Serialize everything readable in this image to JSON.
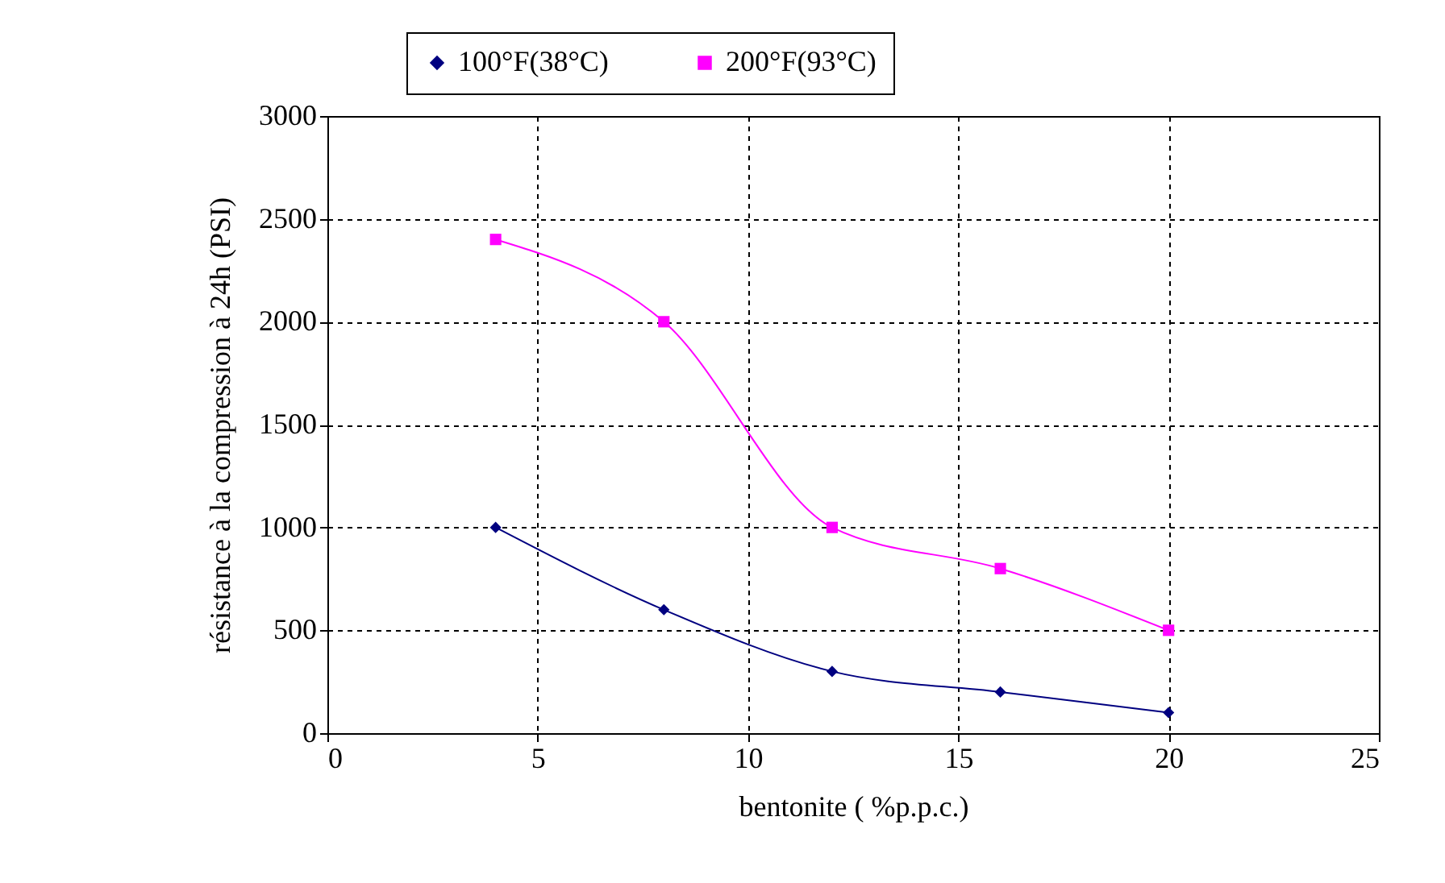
{
  "chart_data": {
    "type": "line",
    "xlabel": "bentonite ( %p.p.c.)",
    "ylabel": "résistance à la compression à 24h (PSI)",
    "x": [
      4,
      8,
      12,
      16,
      20
    ],
    "series": [
      {
        "name": "100°F(38°C)",
        "color": "#000080",
        "marker": "diamond",
        "values": [
          1000,
          600,
          300,
          200,
          100
        ]
      },
      {
        "name": "200°F(93°C)",
        "color": "#ff00ff",
        "marker": "square",
        "values": [
          2400,
          2000,
          1000,
          800,
          500
        ]
      }
    ],
    "xlim": [
      0,
      25
    ],
    "xticks": [
      0,
      5,
      10,
      15,
      20,
      25
    ],
    "ylim": [
      0,
      3000
    ],
    "yticks": [
      0,
      500,
      1000,
      1500,
      2000,
      2500,
      3000
    ],
    "grid": true,
    "legend": "top",
    "line_style": "solid"
  }
}
